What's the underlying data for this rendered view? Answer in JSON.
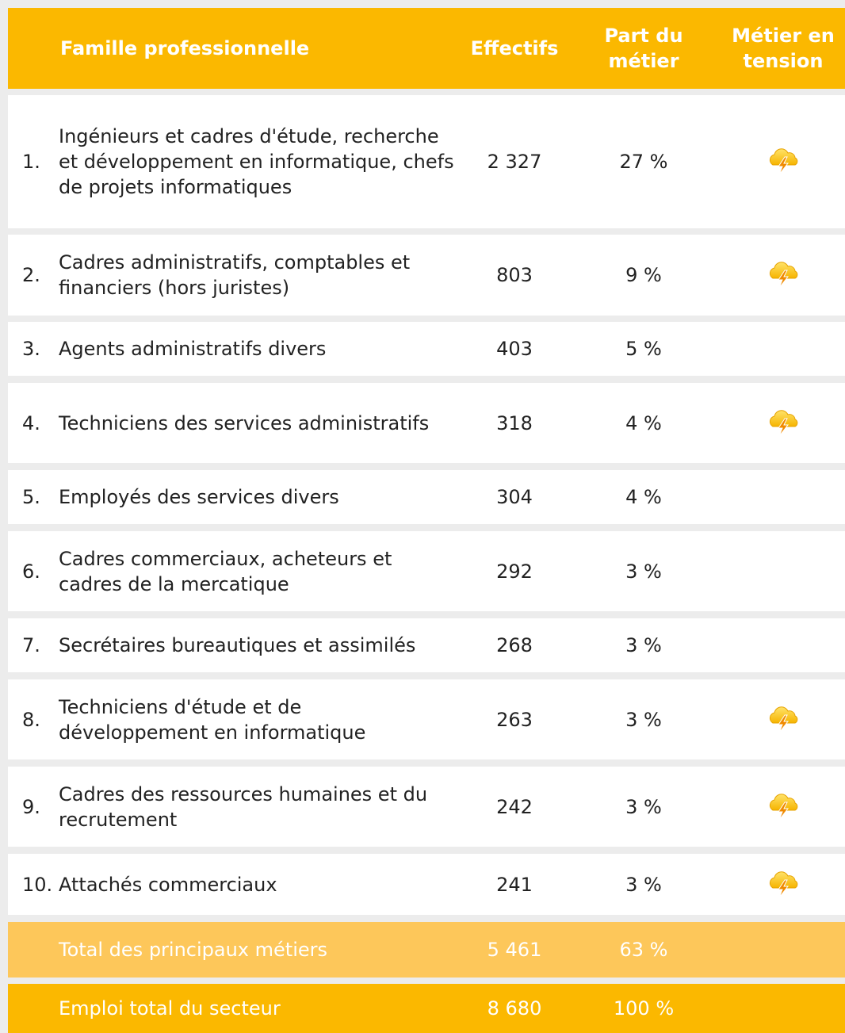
{
  "table": {
    "header": [
      "Famille professionnelle",
      "Effectifs",
      "Part du métier",
      "Métier en tension"
    ],
    "rows": [
      {
        "rank": "1.",
        "label": "Ingénieurs et cadres d'étude, recherche et développement en informatique, chefs de projets informatiques",
        "effectifs": "2 327",
        "part": "27 %",
        "tension": true
      },
      {
        "rank": "2.",
        "label": "Cadres administratifs, comptables et financiers (hors juristes)",
        "effectifs": "803",
        "part": "9 %",
        "tension": true
      },
      {
        "rank": "3.",
        "label": "Agents administratifs divers",
        "effectifs": "403",
        "part": "5 %",
        "tension": false
      },
      {
        "rank": "4.",
        "label": "Techniciens des services administratifs",
        "effectifs": "318",
        "part": "4 %",
        "tension": true
      },
      {
        "rank": "5.",
        "label": "Employés des services divers",
        "effectifs": "304",
        "part": "4 %",
        "tension": false
      },
      {
        "rank": "6.",
        "label": "Cadres commerciaux, acheteurs et cadres de la mercatique",
        "effectifs": "292",
        "part": "3 %",
        "tension": false
      },
      {
        "rank": "7.",
        "label": "Secrétaires bureautiques et assimilés",
        "effectifs": "268",
        "part": "3 %",
        "tension": false
      },
      {
        "rank": "8.",
        "label": "Techniciens d'étude et de développement en informatique",
        "effectifs": "263",
        "part": "3 %",
        "tension": true
      },
      {
        "rank": "9.",
        "label": "Cadres des ressources humaines et du recrutement",
        "effectifs": "242",
        "part": "3 %",
        "tension": true
      },
      {
        "rank": "10.",
        "label": "Attachés commerciaux",
        "effectifs": "241",
        "part": "3 %",
        "tension": true
      }
    ],
    "totals": [
      {
        "label": "Total des principaux métiers",
        "effectifs": "5 461",
        "part": "63 %"
      },
      {
        "label": "Emploi total du secteur",
        "effectifs": "8 680",
        "part": "100 %"
      }
    ]
  }
}
